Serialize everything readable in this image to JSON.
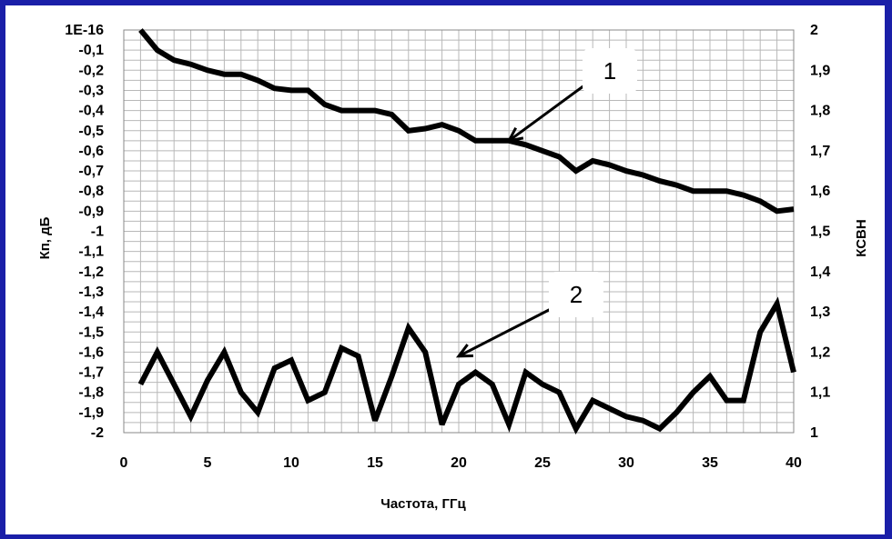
{
  "chart_data": {
    "type": "line",
    "title": "",
    "xlabel": "Частота, ГГц",
    "ylabel_left": "Кп, дБ",
    "ylabel_right": "КСВН",
    "xlim": [
      0,
      40
    ],
    "ylim_left": [
      -2,
      0
    ],
    "ylim_right": [
      1,
      2
    ],
    "grid": true,
    "x_ticks": [
      "0",
      "5",
      "10",
      "15",
      "20",
      "25",
      "30",
      "35",
      "40"
    ],
    "y_left_ticks": [
      "1E-16",
      "-0,1",
      "-0,2",
      "-0,3",
      "-0,4",
      "-0,5",
      "-0,6",
      "-0,7",
      "-0,8",
      "-0,9",
      "-1",
      "-1,1",
      "-1,2",
      "-1,3",
      "-1,4",
      "-1,5",
      "-1,6",
      "-1,7",
      "-1,8",
      "-1,9",
      "-2"
    ],
    "y_right_ticks": [
      "2",
      "1,9",
      "1,8",
      "1,7",
      "1,6",
      "1,5",
      "1,4",
      "1,3",
      "1,2",
      "1,1",
      "1"
    ],
    "series": [
      {
        "axis": "left",
        "x": [
          1,
          2,
          3,
          4,
          5,
          6,
          7,
          8,
          9,
          10,
          11,
          12,
          13,
          14,
          15,
          16,
          17,
          18,
          19,
          20,
          21,
          22,
          23,
          24,
          25,
          26,
          27,
          28,
          29,
          30,
          31,
          32,
          33,
          34,
          35,
          36,
          37,
          38,
          39,
          40
        ],
        "values": [
          0,
          -0.1,
          -0.15,
          -0.17,
          -0.2,
          -0.22,
          -0.22,
          -0.25,
          -0.29,
          -0.3,
          -0.3,
          -0.37,
          -0.4,
          -0.4,
          -0.4,
          -0.42,
          -0.5,
          -0.49,
          -0.47,
          -0.5,
          -0.55,
          -0.55,
          -0.55,
          -0.57,
          -0.6,
          -0.63,
          -0.7,
          -0.65,
          -0.67,
          -0.7,
          -0.72,
          -0.75,
          -0.77,
          -0.8,
          -0.8,
          -0.8,
          -0.82,
          -0.85,
          -0.9,
          -0.89
        ]
      },
      {
        "axis": "right",
        "x": [
          1,
          2,
          3,
          4,
          5,
          6,
          7,
          8,
          9,
          10,
          11,
          12,
          13,
          14,
          15,
          16,
          17,
          18,
          19,
          20,
          21,
          22,
          23,
          24,
          25,
          26,
          27,
          28,
          29,
          30,
          31,
          32,
          33,
          34,
          35,
          36,
          37,
          38,
          39,
          40
        ],
        "values": [
          1.12,
          1.2,
          1.12,
          1.04,
          1.13,
          1.2,
          1.1,
          1.05,
          1.16,
          1.18,
          1.08,
          1.1,
          1.21,
          1.19,
          1.03,
          1.14,
          1.26,
          1.2,
          1.02,
          1.12,
          1.15,
          1.12,
          1.02,
          1.15,
          1.12,
          1.1,
          1.01,
          1.08,
          1.06,
          1.04,
          1.03,
          1.01,
          1.05,
          1.1,
          1.14,
          1.08,
          1.08,
          1.25,
          1.32,
          1.15
        ]
      }
    ],
    "annotations": [
      {
        "label": "1",
        "points_to": {
          "x": 23,
          "y": -0.55,
          "axis": "left"
        }
      },
      {
        "label": "2",
        "points_to": {
          "x": 20,
          "y": 1.19,
          "axis": "right"
        }
      }
    ]
  }
}
